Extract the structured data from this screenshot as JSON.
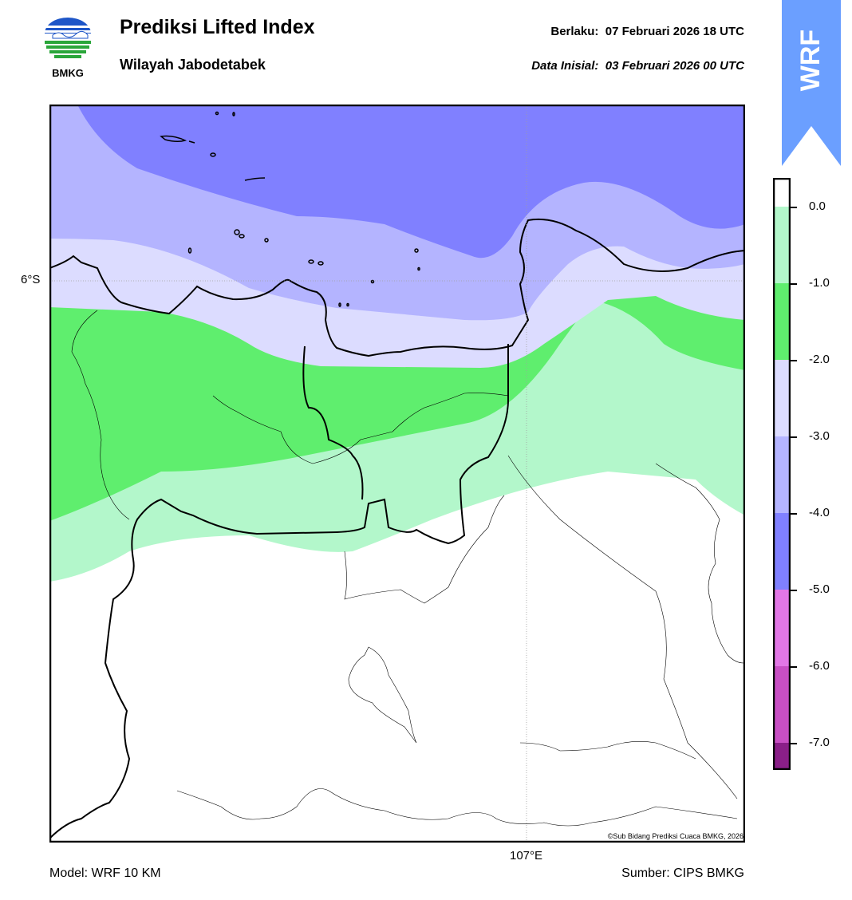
{
  "header": {
    "title": "Prediksi Lifted Index",
    "subtitle": "Wilayah Jabodetabek",
    "valid_label": "Berlaku:",
    "valid_value": "07 Februari 2026 18 UTC",
    "init_label": "Data Inisial:",
    "init_value": "03 Februari 2026 00 UTC"
  },
  "logo": {
    "icon": "bmkg-logo-icon",
    "text": "BMKG"
  },
  "badge": {
    "text": "WRF",
    "color": "#6b9fff"
  },
  "map": {
    "lat_label": "6°S",
    "lon_label": "107°E",
    "credit": "©Sub Bidang Prediksi Cuaca BMKG, 2026"
  },
  "footer": {
    "model": "Model: WRF 10 KM",
    "source": "Sumber: CIPS BMKG"
  },
  "colorbar": {
    "ticks": [
      "0.0",
      "-1.0",
      "-2.0",
      "-3.0",
      "-4.0",
      "-5.0",
      "-6.0",
      "-7.0"
    ],
    "colors": {
      "above_0": "#ffffff",
      "0_to_-1": "#b3f7cb",
      "-1_to_-2": "#5fee6e",
      "-2_to_-3": "#dcdcff",
      "-3_to_-4": "#b4b4ff",
      "-4_to_-5": "#8080ff",
      "-5_to_-6": "#e277e6",
      "-6_to_-7": "#c84fc4",
      "below_-7": "#8a1f88"
    }
  }
}
